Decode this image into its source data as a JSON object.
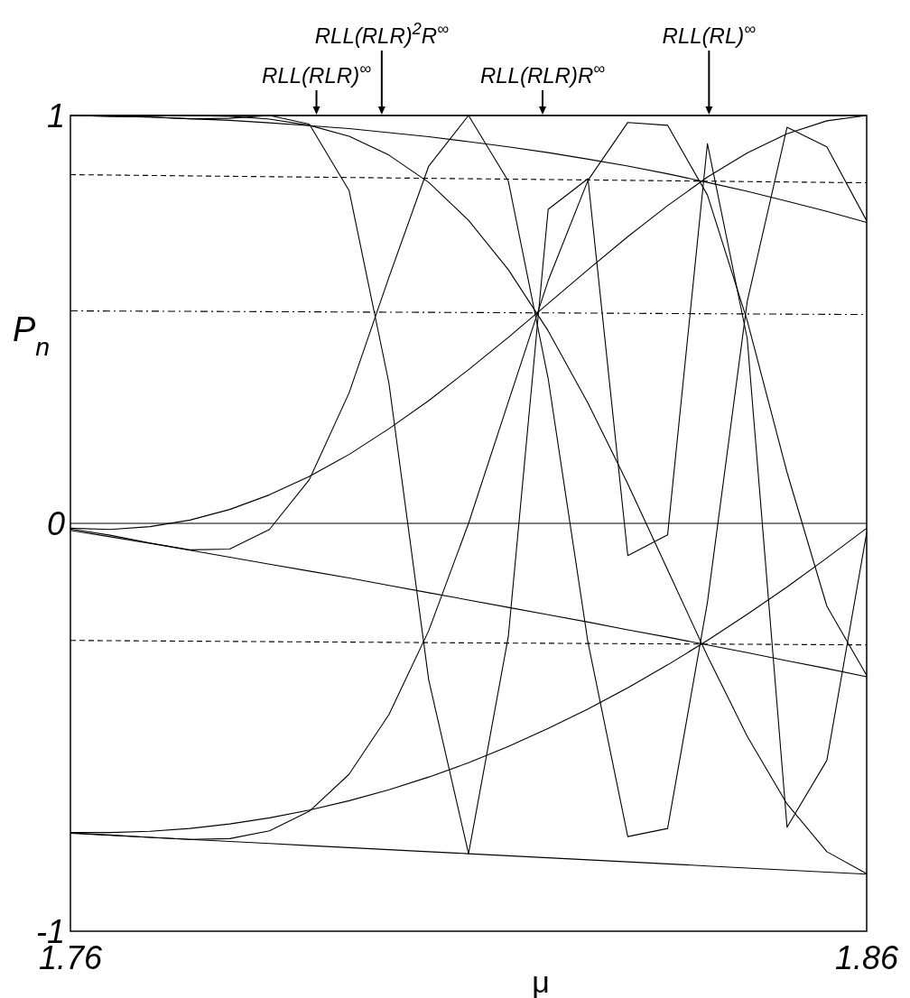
{
  "chart_data": {
    "type": "line",
    "xlabel": "μ",
    "ylabel": "P$_{n}$",
    "xlim": [
      1.76,
      1.86
    ],
    "ylim": [
      -1,
      1
    ],
    "xticks": [
      1.76,
      1.86
    ],
    "yticks": [
      -1,
      0,
      1
    ],
    "grid": false,
    "marker": "none",
    "line_style": "solid",
    "x": [
      1.76,
      1.765,
      1.77,
      1.775,
      1.78,
      1.785,
      1.79,
      1.795,
      1.8,
      1.805,
      1.81,
      1.815,
      1.82,
      1.825,
      1.83,
      1.835,
      1.84,
      1.845,
      1.85,
      1.855,
      1.86
    ],
    "series": [
      {
        "color": "#000000",
        "x": [
          1.76,
          1.86
        ],
        "values": [
          1,
          1
        ]
      },
      {
        "color": "#000000",
        "values": [
          -0.76,
          -0.765,
          -0.77,
          -0.775,
          -0.78,
          -0.785,
          -0.79,
          -0.795,
          -0.8,
          -0.805,
          -0.81,
          -0.815,
          -0.82,
          -0.825,
          -0.83,
          -0.835,
          -0.84,
          -0.845,
          -0.85,
          -0.855,
          -0.86
        ]
      },
      {
        "color": "#000000",
        "values": [
          -0.017,
          -0.033,
          -0.049,
          -0.066,
          -0.083,
          -0.1,
          -0.117,
          -0.134,
          -0.152,
          -0.17,
          -0.188,
          -0.206,
          -0.224,
          -0.242,
          -0.261,
          -0.279,
          -0.298,
          -0.317,
          -0.337,
          -0.356,
          -0.376
        ]
      },
      {
        "color": "#000000",
        "values": [
          1.0,
          0.998,
          0.996,
          0.992,
          0.988,
          0.982,
          0.975,
          0.968,
          0.958,
          0.948,
          0.936,
          0.923,
          0.909,
          0.893,
          0.876,
          0.857,
          0.836,
          0.814,
          0.79,
          0.765,
          0.738
        ]
      },
      {
        "color": "#000000",
        "values": [
          -0.758,
          -0.758,
          -0.755,
          -0.748,
          -0.737,
          -0.722,
          -0.703,
          -0.68,
          -0.653,
          -0.622,
          -0.587,
          -0.547,
          -0.503,
          -0.455,
          -0.403,
          -0.347,
          -0.287,
          -0.223,
          -0.156,
          -0.085,
          -0.012
        ]
      },
      {
        "color": "#000000",
        "values": [
          -0.012,
          -0.015,
          -0.008,
          0.008,
          0.034,
          0.07,
          0.115,
          0.169,
          0.232,
          0.301,
          0.377,
          0.456,
          0.539,
          0.622,
          0.703,
          0.779,
          0.849,
          0.908,
          0.955,
          0.987,
          1.0
        ]
      },
      {
        "color": "#000000",
        "values": [
          1.0,
          1.0,
          1.0,
          1.0,
          0.998,
          0.991,
          0.976,
          0.949,
          0.903,
          0.836,
          0.743,
          0.622,
          0.472,
          0.295,
          0.097,
          -0.114,
          -0.325,
          -0.522,
          -0.688,
          -0.805,
          -0.859
        ]
      },
      {
        "color": "#000000",
        "values": [
          -0.759,
          -0.764,
          -0.77,
          -0.775,
          -0.773,
          -0.754,
          -0.706,
          -0.615,
          -0.469,
          -0.263,
          0.0,
          0.298,
          0.595,
          0.841,
          0.983,
          0.976,
          0.805,
          0.497,
          0.125,
          -0.203,
          -0.373
        ]
      },
      {
        "color": "#000000",
        "values": [
          -0.014,
          -0.029,
          -0.048,
          -0.065,
          -0.063,
          -0.015,
          0.107,
          0.32,
          0.603,
          0.876,
          1.0,
          0.839,
          0.355,
          -0.292,
          -0.768,
          -0.748,
          -0.194,
          0.544,
          0.971,
          0.923,
          0.742
        ]
      },
      {
        "color": "#000000",
        "values": [
          1.0,
          0.998,
          0.996,
          0.992,
          0.993,
          1.0,
          0.979,
          0.816,
          0.344,
          -0.384,
          -0.81,
          -0.277,
          0.77,
          0.845,
          -0.079,
          -0.028,
          0.931,
          0.453,
          -0.745,
          -0.581,
          -0.023
        ]
      },
      {
        "color": "#000000",
        "x": [
          1.76,
          1.81,
          1.86
        ],
        "values": [
          0.855,
          0.845,
          0.835
        ],
        "line_style": "dashed"
      },
      {
        "color": "#000000",
        "x": [
          1.76,
          1.81,
          1.86
        ],
        "values": [
          0.521,
          0.517,
          0.512
        ],
        "line_style": "dashdot"
      },
      {
        "color": "#000000",
        "x": [
          1.76,
          1.81,
          1.86
        ],
        "values": [
          -0.287,
          -0.293,
          -0.298
        ],
        "line_style": "dashed"
      }
    ],
    "ref_lines": [
      {
        "axis": "y",
        "value": 0,
        "color": "#000000"
      }
    ],
    "annotations": [
      {
        "text": "RLL(RLR)$^{∞}$",
        "x": 1.7909,
        "y": 1
      },
      {
        "text": "RLL(RLR)$^{2}$R$^{∞}$",
        "x": 1.7991,
        "y": 1
      },
      {
        "text": "RLL(RLR)R$^{∞}$",
        "x": 1.8193,
        "y": 1
      },
      {
        "text": "RLL(RL)$^{∞}$",
        "x": 1.8402,
        "y": 1
      }
    ]
  }
}
